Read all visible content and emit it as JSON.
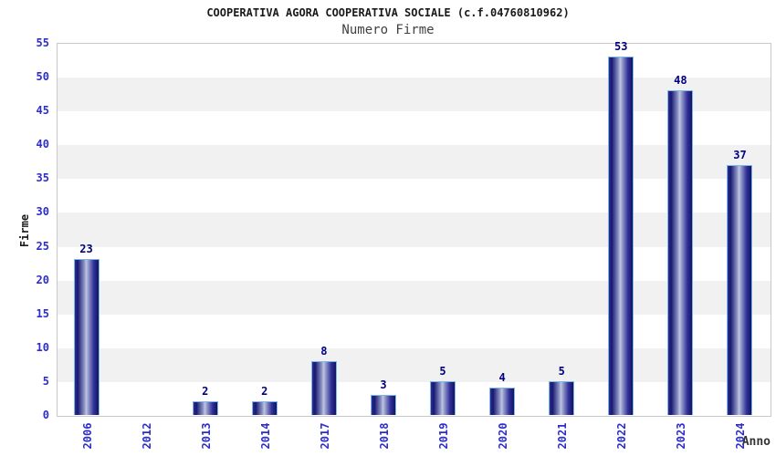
{
  "chart_data": {
    "type": "bar",
    "title": "COOPERATIVA AGORA COOPERATIVA SOCIALE (c.f.04760810962)",
    "subtitle": "Numero Firme",
    "xlabel": "Anno",
    "ylabel": "Firme",
    "categories": [
      "2006",
      "2012",
      "2013",
      "2014",
      "2017",
      "2018",
      "2019",
      "2020",
      "2021",
      "2022",
      "2023",
      "2024"
    ],
    "values": [
      23,
      0,
      2,
      2,
      8,
      3,
      5,
      4,
      5,
      53,
      48,
      37
    ],
    "ylim": [
      0,
      55
    ],
    "ytick_step": 5,
    "grid": "alternating-horizontal-bands",
    "legend": "none",
    "colors": {
      "bar_border": "#7ab8e8",
      "bar_dark": "#181870",
      "bar_light": "#c0c5e1",
      "tick_label": "#2d2dcc",
      "value_label": "#000080",
      "band_gray": "#f1f1f1",
      "plot_border": "#c9c9c9",
      "title": "#1a1a1a",
      "subtitle": "#404040",
      "axis_title": "#333333"
    }
  }
}
